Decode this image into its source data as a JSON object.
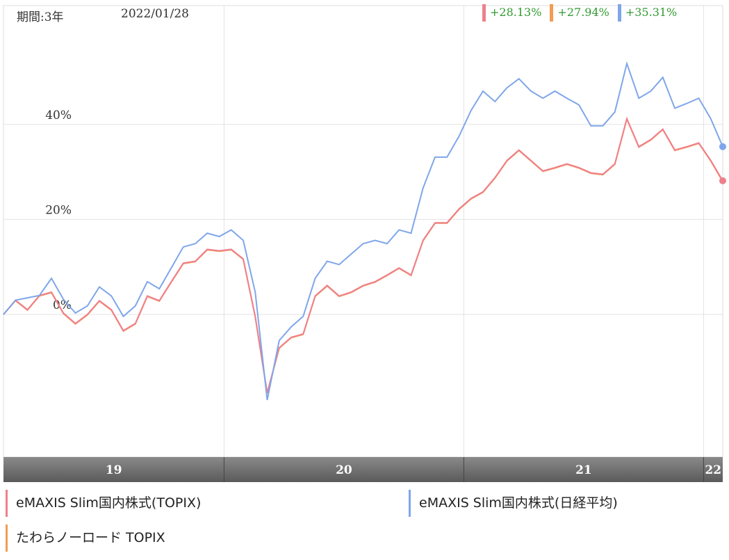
{
  "chart_data": {
    "type": "line",
    "period": "期間:3年",
    "date": "2022/01/28",
    "x": [
      19.08,
      19.13,
      19.18,
      19.23,
      19.28,
      19.33,
      19.38,
      19.43,
      19.48,
      19.53,
      19.58,
      19.63,
      19.68,
      19.73,
      19.78,
      19.83,
      19.88,
      19.93,
      19.98,
      20.03,
      20.08,
      20.13,
      20.18,
      20.23,
      20.28,
      20.33,
      20.38,
      20.43,
      20.48,
      20.53,
      20.58,
      20.63,
      20.68,
      20.73,
      20.78,
      20.83,
      20.88,
      20.93,
      20.98,
      21.03,
      21.08,
      21.13,
      21.18,
      21.23,
      21.28,
      21.33,
      21.38,
      21.43,
      21.48,
      21.53,
      21.58,
      21.63,
      21.68,
      21.73,
      21.78,
      21.83,
      21.88,
      21.93,
      21.98,
      22.03,
      22.08
    ],
    "xlim": [
      19.08,
      22.08
    ],
    "xticks": [
      19,
      20,
      21,
      22
    ],
    "ylim": [
      -30,
      65
    ],
    "yticks": [
      {
        "value": 0,
        "label": "0%"
      },
      {
        "value": 20,
        "label": "20%"
      },
      {
        "value": 40,
        "label": "40%"
      }
    ],
    "grid": true,
    "series": [
      {
        "name": "eMAXIS Slim国内株式(TOPIX)",
        "color": "#ef7f8c",
        "end_label": "+28.13%",
        "values": [
          0,
          3,
          1,
          4,
          4.7,
          0.3,
          -1.9,
          0,
          2.9,
          1,
          -3.4,
          -1.9,
          3.9,
          2.9,
          6.9,
          10.8,
          11.2,
          13.7,
          13.4,
          13.7,
          11.7,
          -0.4,
          -16.5,
          -7,
          -4.8,
          -4.1,
          3.9,
          6.1,
          3.9,
          4.7,
          6.1,
          6.9,
          8.3,
          9.8,
          8.3,
          15.6,
          19.3,
          19.3,
          22.2,
          24.4,
          25.8,
          28.8,
          32.4,
          34.6,
          32.4,
          30.2,
          30.9,
          31.7,
          30.9,
          29.8,
          29.5,
          31.7,
          41.2,
          35.3,
          36.8,
          39,
          34.6,
          35.3,
          36.1,
          32.4,
          28.13
        ]
      },
      {
        "name": "たわらノーロード TOPIX",
        "color": "#f39c54",
        "end_label": "+27.94%",
        "values": [
          0,
          2.9,
          0.9,
          3.9,
          4.6,
          0.2,
          -2,
          -0.1,
          2.8,
          0.9,
          -3.5,
          -2,
          3.8,
          2.8,
          6.8,
          10.7,
          11.1,
          13.6,
          13.3,
          13.6,
          11.6,
          -0.5,
          -16.6,
          -7.1,
          -4.9,
          -4.2,
          3.8,
          6,
          3.8,
          4.6,
          6,
          6.8,
          8.2,
          9.7,
          8.2,
          15.5,
          19.2,
          19.2,
          22.1,
          24.3,
          25.7,
          28.7,
          32.3,
          34.5,
          32.3,
          30.1,
          30.8,
          31.6,
          30.8,
          29.7,
          29.4,
          31.6,
          41.1,
          35.2,
          36.7,
          38.9,
          34.5,
          35.2,
          36,
          32.3,
          27.94
        ]
      },
      {
        "name": "eMAXIS Slim国内株式(日経平均)",
        "color": "#7fa6ea",
        "end_label": "+35.31%",
        "values": [
          0,
          3,
          3.5,
          4,
          7.6,
          3.2,
          0.3,
          1.8,
          5.8,
          3.9,
          -0.4,
          1.8,
          6.9,
          5.4,
          9.8,
          14.2,
          14.9,
          17.1,
          16.4,
          17.8,
          15.6,
          4.7,
          -18,
          -5.5,
          -2.6,
          -0.4,
          7.6,
          11.2,
          10.5,
          12.7,
          14.9,
          15.6,
          14.9,
          17.8,
          17.1,
          26.6,
          33.1,
          33.1,
          37.5,
          42.9,
          47,
          44.8,
          47.7,
          49.6,
          47,
          45.5,
          47,
          45.5,
          44.1,
          39.7,
          39.7,
          42.6,
          52.8,
          45.5,
          47,
          49.9,
          43.4,
          44.4,
          45.5,
          41.2,
          35.31
        ]
      }
    ]
  }
}
